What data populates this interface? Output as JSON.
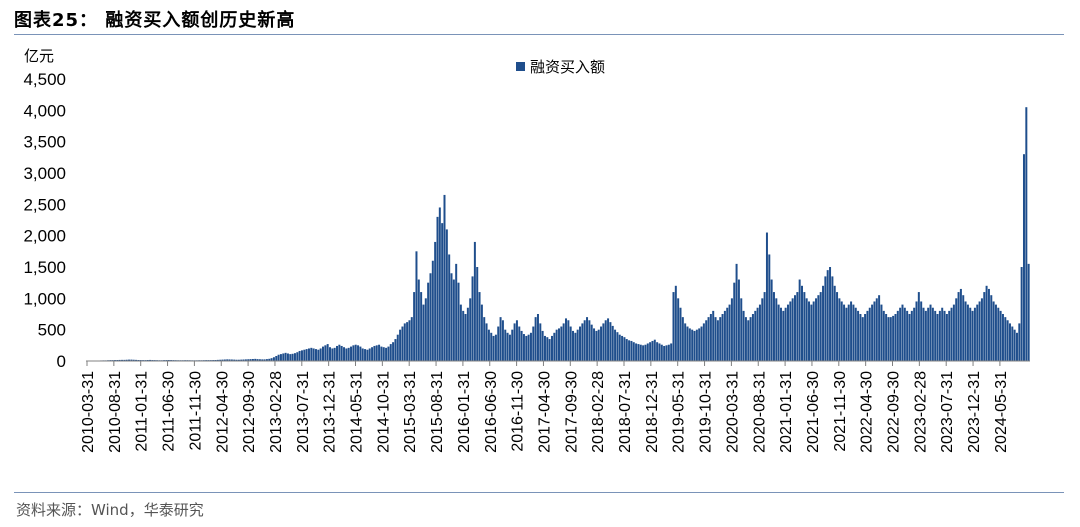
{
  "header": {
    "title": "图表25：  融资买入额创历史新高"
  },
  "footer": {
    "source": "资料来源：Wind，华泰研究"
  },
  "colors": {
    "series": "#1f4e8c",
    "rule": "#7a93b8",
    "axis": "#808080"
  },
  "chart_data": {
    "type": "bar",
    "ylabel": "亿元",
    "ylim": [
      0,
      4500
    ],
    "yticks": [
      "0",
      "500",
      "1,000",
      "1,500",
      "2,000",
      "2,500",
      "3,000",
      "3,500",
      "4,000",
      "4,500"
    ],
    "ytick_values": [
      0,
      500,
      1000,
      1500,
      2000,
      2500,
      3000,
      3500,
      4000,
      4500
    ],
    "legend": {
      "placement": "top-center",
      "entries": [
        "融资买入额"
      ]
    },
    "grid": false,
    "x_tick_labels": [
      "2010-03-31",
      "2010-08-31",
      "2011-01-31",
      "2011-06-30",
      "2011-11-30",
      "2012-04-30",
      "2012-09-30",
      "2013-02-28",
      "2013-07-31",
      "2013-12-31",
      "2014-05-31",
      "2014-10-31",
      "2015-03-31",
      "2015-08-31",
      "2016-01-31",
      "2016-06-30",
      "2016-11-30",
      "2017-04-30",
      "2017-09-30",
      "2018-02-28",
      "2018-07-31",
      "2018-12-31",
      "2019-05-31",
      "2019-10-31",
      "2020-03-31",
      "2020-08-31",
      "2021-01-31",
      "2021-06-30",
      "2021-11-30",
      "2022-04-30",
      "2022-09-30",
      "2023-02-28",
      "2023-07-31",
      "2023-12-31",
      "2024-05-31"
    ],
    "series": [
      {
        "name": "融资买入额",
        "x_start": "2010-03-31",
        "x_end": "2024-10-08",
        "frequency": "approximately weekly samples of daily values",
        "values": [
          5,
          5,
          6,
          6,
          7,
          8,
          9,
          10,
          10,
          12,
          14,
          14,
          15,
          16,
          17,
          18,
          18,
          20,
          22,
          22,
          20,
          18,
          16,
          15,
          14,
          14,
          16,
          17,
          15,
          14,
          13,
          12,
          12,
          14,
          15,
          16,
          15,
          14,
          13,
          12,
          12,
          12,
          13,
          13,
          12,
          11,
          11,
          11,
          12,
          12,
          13,
          14,
          14,
          14,
          15,
          16,
          18,
          20,
          22,
          24,
          26,
          25,
          24,
          22,
          20,
          20,
          22,
          24,
          26,
          28,
          30,
          32,
          34,
          30,
          28,
          26,
          26,
          30,
          35,
          45,
          60,
          80,
          100,
          110,
          120,
          130,
          120,
          110,
          115,
          125,
          140,
          160,
          170,
          180,
          190,
          200,
          210,
          200,
          190,
          180,
          200,
          230,
          250,
          270,
          220,
          200,
          210,
          240,
          260,
          240,
          220,
          200,
          210,
          230,
          250,
          260,
          250,
          230,
          200,
          190,
          180,
          200,
          220,
          240,
          250,
          260,
          230,
          220,
          210,
          230,
          270,
          300,
          350,
          420,
          500,
          550,
          600,
          620,
          650,
          700,
          1100,
          1750,
          1300,
          1100,
          900,
          1000,
          1250,
          1400,
          1600,
          1900,
          2300,
          2450,
          2200,
          2650,
          2100,
          1700,
          1400,
          1300,
          1550,
          1250,
          900,
          800,
          750,
          850,
          1000,
          1350,
          1900,
          1500,
          1100,
          900,
          700,
          600,
          500,
          450,
          400,
          420,
          550,
          700,
          650,
          500,
          450,
          420,
          500,
          600,
          650,
          550,
          480,
          430,
          400,
          420,
          450,
          550,
          700,
          750,
          600,
          480,
          400,
          380,
          350,
          400,
          450,
          500,
          520,
          550,
          600,
          680,
          650,
          550,
          480,
          450,
          500,
          550,
          600,
          650,
          700,
          650,
          580,
          520,
          480,
          500,
          550,
          600,
          650,
          680,
          620,
          560,
          500,
          460,
          420,
          400,
          380,
          350,
          330,
          320,
          300,
          280,
          270,
          260,
          250,
          260,
          280,
          300,
          320,
          340,
          300,
          280,
          260,
          240,
          250,
          260,
          280,
          1100,
          1200,
          1000,
          850,
          700,
          600,
          550,
          520,
          500,
          480,
          500,
          520,
          550,
          600,
          650,
          700,
          750,
          800,
          700,
          650,
          700,
          750,
          800,
          850,
          900,
          1000,
          1250,
          1550,
          1300,
          1000,
          800,
          700,
          650,
          700,
          750,
          800,
          850,
          900,
          1000,
          1100,
          2050,
          1700,
          1300,
          1100,
          1000,
          900,
          850,
          800,
          850,
          900,
          950,
          1000,
          1050,
          1100,
          1300,
          1200,
          1100,
          1000,
          950,
          900,
          950,
          1000,
          1050,
          1100,
          1200,
          1350,
          1450,
          1500,
          1350,
          1200,
          1100,
          1000,
          950,
          900,
          850,
          900,
          950,
          900,
          850,
          800,
          750,
          700,
          750,
          800,
          850,
          900,
          950,
          1000,
          1050,
          900,
          800,
          750,
          700,
          700,
          720,
          750,
          800,
          850,
          900,
          850,
          800,
          750,
          800,
          850,
          950,
          1100,
          950,
          850,
          800,
          850,
          900,
          850,
          800,
          750,
          800,
          850,
          800,
          750,
          800,
          850,
          900,
          1000,
          1100,
          1150,
          1050,
          950,
          900,
          850,
          800,
          850,
          900,
          950,
          1000,
          1100,
          1200,
          1150,
          1050,
          950,
          900,
          850,
          800,
          750,
          700,
          650,
          600,
          550,
          500,
          450,
          600,
          1500,
          3300,
          4050,
          1550
        ]
      }
    ]
  }
}
